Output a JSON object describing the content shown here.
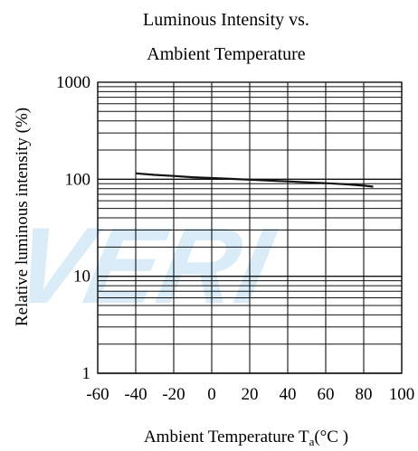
{
  "chart_data": {
    "type": "line",
    "title": [
      "Luminous Intensity vs.",
      "Ambient Temperature"
    ],
    "xlabel": "Ambient Temperature T",
    "xlabel_subscript": "a",
    "xlabel_unit": "(°C )",
    "ylabel": "Relative luminous intensity (%)",
    "xlim": [
      -60,
      100
    ],
    "ylim": [
      1,
      1000
    ],
    "yscale": "log",
    "grid": true,
    "x_ticks": [
      "-60",
      "-40",
      "-20",
      "0",
      "20",
      "40",
      "60",
      "80",
      "100"
    ],
    "y_ticks": [
      "1",
      "10",
      "100",
      "1000"
    ],
    "series": [
      {
        "x": [
          -40,
          -30,
          -20,
          -10,
          0,
          10,
          20,
          30,
          40,
          50,
          60,
          70,
          80,
          85
        ],
        "y": [
          115,
          111,
          108,
          105,
          103,
          101,
          99,
          97,
          95,
          93,
          91,
          89,
          86,
          84
        ]
      }
    ],
    "colors": {
      "line": "#111111",
      "grid": "#111111",
      "watermark": "#d9ecf7"
    }
  }
}
